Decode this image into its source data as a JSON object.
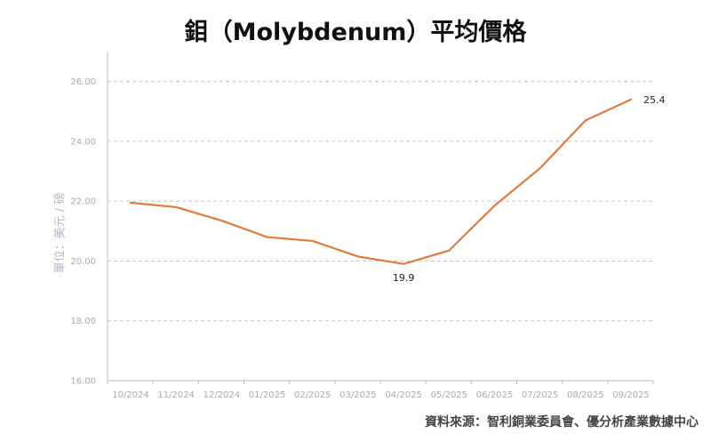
{
  "title": "鉬（Molybdenum）平均價格",
  "source": "資料來源：智利銅業委員會、優分析產業數據中心",
  "chart_data": {
    "type": "line",
    "title": "鉬（Molybdenum）平均價格",
    "xlabel": "",
    "ylabel": "單位：美元 / 磅",
    "categories": [
      "10/2024",
      "11/2024",
      "12/2024",
      "01/2025",
      "02/2025",
      "03/2025",
      "04/2025",
      "05/2025",
      "06/2025",
      "07/2025",
      "08/2025",
      "09/2025"
    ],
    "series": [
      {
        "values": [
          21.95,
          21.8,
          21.35,
          20.8,
          20.67,
          20.15,
          19.9,
          20.35,
          21.85,
          23.1,
          24.7,
          25.4
        ],
        "color": "#e07b39"
      }
    ],
    "ylim": [
      16,
      27
    ],
    "yticks": [
      "16.00",
      "18.00",
      "20.00",
      "22.00",
      "24.00",
      "26.00"
    ],
    "grid": true,
    "legend": "none",
    "annotations": [
      {
        "label": "19.9",
        "index": 6
      },
      {
        "label": "25.4",
        "index": 11
      }
    ]
  }
}
